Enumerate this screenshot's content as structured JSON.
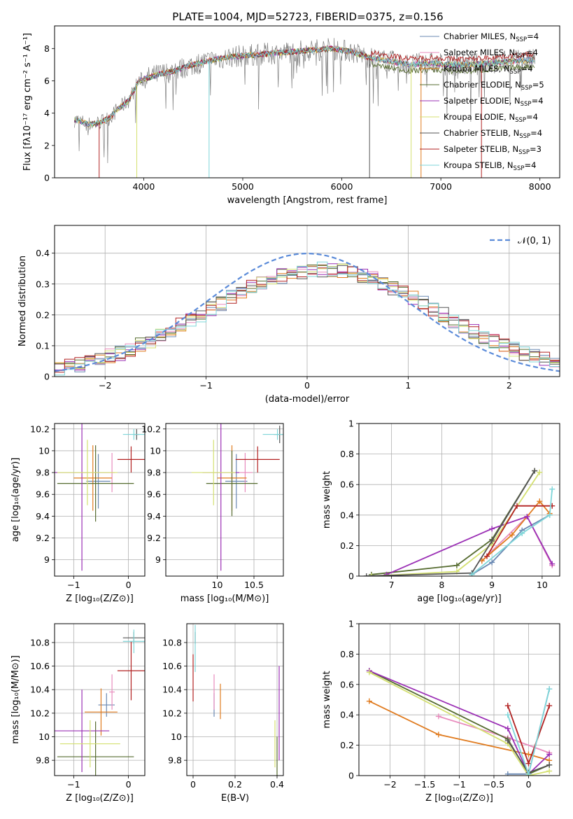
{
  "figure": {
    "title": "PLATE=1004, MJD=52723, FIBERID=0375, z=0.156",
    "colors": [
      "#6a89b3",
      "#e88bbd",
      "#e07b1f",
      "#556b2f",
      "#9b30b5",
      "#d4e070",
      "#555555",
      "#b22222",
      "#7fd6d9"
    ]
  },
  "chart_data": [
    {
      "type": "line",
      "name": "spectrum",
      "title": "PLATE=1004, MJD=52723, FIBERID=0375, z=0.156",
      "xlabel": "wavelength [Angstrom, rest frame]",
      "ylabel": "Flux [fλ10⁻¹⁷ erg cm⁻² s⁻¹ A⁻¹]",
      "xlim": [
        3100,
        8200
      ],
      "ylim": [
        0,
        9.4
      ],
      "xticks": [
        4000,
        5000,
        6000,
        7000,
        8000
      ],
      "yticks": [
        0,
        2,
        4,
        6,
        8
      ],
      "grid": false,
      "legend_position": "top-right",
      "continuum": {
        "x": [
          3300,
          3450,
          3550,
          3650,
          3750,
          3850,
          3950,
          4050,
          4150,
          4300,
          4500,
          4700,
          4900,
          5100,
          5300,
          5500,
          5700,
          5900,
          6100,
          6300,
          6500,
          6700,
          6900,
          7100,
          7300,
          7500,
          7700,
          7950
        ],
        "y": [
          3.6,
          3.3,
          3.4,
          3.7,
          4.3,
          4.8,
          6.0,
          6.2,
          6.4,
          6.6,
          7.0,
          7.3,
          7.5,
          7.6,
          7.7,
          7.8,
          7.9,
          8.0,
          7.8,
          7.4,
          7.2,
          7.0,
          7.1,
          7.0,
          7.0,
          7.1,
          7.2,
          7.3
        ]
      },
      "series": [
        {
          "name": "Chabrier MILES, N",
          "sub": "SSP",
          "suffix": "=4"
        },
        {
          "name": "Salpeter MILES, N",
          "sub": "SSP",
          "suffix": "=4"
        },
        {
          "name": "Kroupa MILES, N",
          "sub": "SSP",
          "suffix": "=4"
        },
        {
          "name": "Chabrier ELODIE, N",
          "sub": "SSP",
          "suffix": "=5"
        },
        {
          "name": "Salpeter ELODIE, N",
          "sub": "SSP",
          "suffix": "=4"
        },
        {
          "name": "Kroupa ELODIE, N",
          "sub": "SSP",
          "suffix": "=4"
        },
        {
          "name": "Chabrier STELIB, N",
          "sub": "SSP",
          "suffix": "=4"
        },
        {
          "name": "Salpeter STELIB, N",
          "sub": "SSP",
          "suffix": "=3"
        },
        {
          "name": "Kroupa STELIB, N",
          "sub": "SSP",
          "suffix": "=4"
        }
      ]
    },
    {
      "type": "line",
      "name": "residuals",
      "xlabel": "(data-model)/error",
      "ylabel": "Normed distribution",
      "xlim": [
        -2.5,
        2.5
      ],
      "ylim": [
        0,
        0.49
      ],
      "xticks": [
        -2,
        -1,
        0,
        1,
        2
      ],
      "yticks": [
        0.0,
        0.1,
        0.2,
        0.3,
        0.4
      ],
      "grid": true,
      "legend_position": "top-right",
      "gaussian_label": "𝒩(0, 1)"
    },
    {
      "type": "scatter",
      "name": "age-Z",
      "xlabel": "Z [log₁₀(Z/Z⊙)]",
      "ylabel": "age  [log₁₀(age/yr)]",
      "xlim": [
        -1.35,
        0.3
      ],
      "ylim": [
        8.85,
        10.25
      ],
      "xticks": [
        -1,
        0
      ],
      "yticks": [
        9.0,
        9.2,
        9.4,
        9.6,
        9.8,
        10.0,
        10.2
      ],
      "grid": true,
      "points": [
        {
          "x": -0.55,
          "y": 9.72,
          "xe": 0.22,
          "ye": 0.25,
          "c": 0
        },
        {
          "x": -0.3,
          "y": 9.8,
          "xe": 0.05,
          "ye": 0.18,
          "c": 1
        },
        {
          "x": -0.65,
          "y": 9.75,
          "xe": 0.35,
          "ye": 0.3,
          "c": 2
        },
        {
          "x": -0.6,
          "y": 9.7,
          "xe": 0.7,
          "ye": 0.35,
          "c": 3
        },
        {
          "x": -0.85,
          "y": 9.8,
          "xe": 0.5,
          "ye": 0.9,
          "c": 4
        },
        {
          "x": -0.75,
          "y": 9.8,
          "xe": 0.55,
          "ye": 0.3,
          "c": 5
        },
        {
          "x": 0.15,
          "y": 10.15,
          "xe": 0.05,
          "ye": 0.05,
          "c": 6
        },
        {
          "x": 0.05,
          "y": 9.92,
          "xe": 0.25,
          "ye": 0.12,
          "c": 7
        },
        {
          "x": 0.1,
          "y": 10.15,
          "xe": 0.2,
          "ye": 0.05,
          "c": 8
        }
      ]
    },
    {
      "type": "scatter",
      "name": "age-mass",
      "xlabel": "mass [log₁₀(M/M⊙)]",
      "ylabel": "",
      "xlim": [
        9.3,
        10.9
      ],
      "ylim": [
        8.85,
        10.25
      ],
      "xticks": [
        10.0,
        10.5
      ],
      "yticks": [
        9.0,
        9.2,
        9.4,
        9.6,
        9.8,
        10.0,
        10.2
      ],
      "grid": true,
      "points": [
        {
          "x": 10.26,
          "y": 9.72,
          "xe": 0.15,
          "ye": 0.25,
          "c": 0
        },
        {
          "x": 10.38,
          "y": 9.8,
          "xe": 0.1,
          "ye": 0.18,
          "c": 1
        },
        {
          "x": 10.2,
          "y": 9.75,
          "xe": 0.2,
          "ye": 0.3,
          "c": 2
        },
        {
          "x": 10.2,
          "y": 9.7,
          "xe": 0.35,
          "ye": 0.3,
          "c": 3
        },
        {
          "x": 10.05,
          "y": 9.8,
          "xe": 0.25,
          "ye": 0.9,
          "c": 4
        },
        {
          "x": 9.95,
          "y": 9.8,
          "xe": 0.3,
          "ye": 0.3,
          "c": 5
        },
        {
          "x": 10.85,
          "y": 10.15,
          "xe": 0.08,
          "ye": 0.08,
          "c": 6
        },
        {
          "x": 10.55,
          "y": 9.92,
          "xe": 0.3,
          "ye": 0.12,
          "c": 7
        },
        {
          "x": 10.82,
          "y": 10.15,
          "xe": 0.2,
          "ye": 0.05,
          "c": 8
        }
      ]
    },
    {
      "type": "line",
      "name": "weight-age",
      "xlabel": "age  [log₁₀(age/yr)]",
      "ylabel": "mass weight",
      "xlim": [
        6.35,
        10.35
      ],
      "ylim": [
        0,
        1.0
      ],
      "xticks": [
        7,
        8,
        9,
        10
      ],
      "yticks": [
        0.0,
        0.2,
        0.4,
        0.6,
        0.8,
        1.0
      ],
      "grid": true,
      "series": [
        {
          "c": 0,
          "x": [
            8.6,
            9.0,
            9.6,
            10.15
          ],
          "y": [
            0.01,
            0.09,
            0.3,
            0.4
          ]
        },
        {
          "c": 1,
          "x": [
            8.8,
            9.7,
            10.2
          ],
          "y": [
            0.1,
            0.39,
            0.07
          ]
        },
        {
          "c": 2,
          "x": [
            8.8,
            9.4,
            9.95,
            10.15
          ],
          "y": [
            0.1,
            0.27,
            0.49,
            0.41
          ]
        },
        {
          "c": 3,
          "x": [
            6.6,
            8.3,
            9.0,
            9.85
          ],
          "y": [
            0.01,
            0.07,
            0.24,
            0.69
          ]
        },
        {
          "c": 4,
          "x": [
            6.9,
            9.0,
            9.7,
            10.2
          ],
          "y": [
            0.01,
            0.31,
            0.39,
            0.08
          ]
        },
        {
          "c": 5,
          "x": [
            6.6,
            8.3,
            9.0,
            9.95
          ],
          "y": [
            0.0,
            0.03,
            0.21,
            0.68
          ]
        },
        {
          "c": 6,
          "x": [
            6.5,
            8.6,
            9.0,
            9.85
          ],
          "y": [
            0.0,
            0.02,
            0.23,
            0.69
          ]
        },
        {
          "c": 7,
          "x": [
            8.9,
            9.5,
            10.2
          ],
          "y": [
            0.13,
            0.46,
            0.46
          ]
        },
        {
          "c": 8,
          "x": [
            8.6,
            9.6,
            10.15,
            10.2
          ],
          "y": [
            0.01,
            0.28,
            0.4,
            0.57
          ]
        }
      ]
    },
    {
      "type": "scatter",
      "name": "mass-Z",
      "xlabel": "Z [log₁₀(Z/Z⊙)]",
      "ylabel": "mass [log₁₀(M/M⊙)]",
      "xlim": [
        -1.35,
        0.3
      ],
      "ylim": [
        9.67,
        10.96
      ],
      "xticks": [
        -1,
        0
      ],
      "yticks": [
        9.8,
        10.0,
        10.2,
        10.4,
        10.6,
        10.8
      ],
      "grid": true,
      "points": [
        {
          "x": -0.4,
          "y": 10.27,
          "xe": 0.15,
          "ye": 0.1,
          "c": 0
        },
        {
          "x": -0.3,
          "y": 10.38,
          "xe": 0.05,
          "ye": 0.15,
          "c": 1
        },
        {
          "x": -0.5,
          "y": 10.21,
          "xe": 0.3,
          "ye": 0.2,
          "c": 2
        },
        {
          "x": -0.6,
          "y": 9.83,
          "xe": 0.7,
          "ye": 0.3,
          "c": 3
        },
        {
          "x": -0.85,
          "y": 10.05,
          "xe": 0.5,
          "ye": 0.35,
          "c": 4
        },
        {
          "x": -0.7,
          "y": 9.94,
          "xe": 0.55,
          "ye": 0.2,
          "c": 5
        },
        {
          "x": 0.1,
          "y": 10.84,
          "xe": 0.2,
          "ye": 0.05,
          "c": 6
        },
        {
          "x": 0.05,
          "y": 10.56,
          "xe": 0.25,
          "ye": 0.25,
          "c": 7
        },
        {
          "x": 0.1,
          "y": 10.81,
          "xe": 0.2,
          "ye": 0.1,
          "c": 8
        }
      ]
    },
    {
      "type": "scatter",
      "name": "mass-ebv",
      "xlabel": "E(B-V)",
      "ylabel": "",
      "xlim": [
        -0.03,
        0.43
      ],
      "ylim": [
        9.67,
        10.96
      ],
      "xticks": [
        0.0,
        0.2,
        0.4
      ],
      "yticks": [
        9.8,
        10.0,
        10.2,
        10.4,
        10.6,
        10.8
      ],
      "grid": true,
      "points": [
        {
          "x": 0.1,
          "y": 10.27,
          "xe": 0,
          "ye": 0.1,
          "c": 0
        },
        {
          "x": 0.1,
          "y": 10.38,
          "xe": 0,
          "ye": 0.15,
          "c": 1
        },
        {
          "x": 0.13,
          "y": 10.3,
          "xe": 0,
          "ye": 0.15,
          "c": 2
        },
        {
          "x": 0.4,
          "y": 9.8,
          "xe": 0,
          "ye": 0.2,
          "c": 3
        },
        {
          "x": 0.41,
          "y": 10.2,
          "xe": 0,
          "ye": 0.4,
          "c": 4
        },
        {
          "x": 0.39,
          "y": 9.94,
          "xe": 0,
          "ye": 0.2,
          "c": 5
        },
        {
          "x": 0.01,
          "y": 10.84,
          "xe": 0,
          "ye": 0.05,
          "c": 6
        },
        {
          "x": 0.0,
          "y": 10.5,
          "xe": 0,
          "ye": 0.2,
          "c": 7
        },
        {
          "x": 0.01,
          "y": 10.75,
          "xe": 0,
          "ye": 0.2,
          "c": 8
        }
      ]
    },
    {
      "type": "line",
      "name": "weight-Z",
      "xlabel": "Z [log₁₀(Z/Z⊙)]",
      "ylabel": "mass weight",
      "xlim": [
        -2.45,
        0.45
      ],
      "ylim": [
        0,
        1.0
      ],
      "xticks": [
        -2.0,
        -1.5,
        -1.0,
        -0.5,
        0.0
      ],
      "yticks": [
        0.0,
        0.2,
        0.4,
        0.6,
        0.8,
        1.0
      ],
      "grid": true,
      "series": [
        {
          "c": 0,
          "x": [
            -0.3,
            0.0,
            0.3
          ],
          "y": [
            0.01,
            0.01,
            0.57
          ]
        },
        {
          "c": 1,
          "x": [
            -1.3,
            -0.3,
            0.3
          ],
          "y": [
            0.39,
            0.25,
            0.15
          ]
        },
        {
          "c": 2,
          "x": [
            -2.3,
            -1.3,
            0.0,
            0.3
          ],
          "y": [
            0.49,
            0.27,
            0.14,
            0.1
          ]
        },
        {
          "c": 3,
          "x": [
            -2.3,
            -0.3,
            0.0,
            0.3
          ],
          "y": [
            0.69,
            0.24,
            0.01,
            0.07
          ]
        },
        {
          "c": 4,
          "x": [
            -2.3,
            -0.3,
            0.0,
            0.3
          ],
          "y": [
            0.69,
            0.31,
            0.01,
            0.14
          ]
        },
        {
          "c": 5,
          "x": [
            -2.3,
            -0.3,
            0.0,
            0.3
          ],
          "y": [
            0.68,
            0.21,
            0.0,
            0.03
          ]
        },
        {
          "c": 6,
          "x": [
            -0.3,
            0.0,
            0.3
          ],
          "y": [
            0.23,
            0.02,
            0.07
          ]
        },
        {
          "c": 7,
          "x": [
            -0.3,
            0.0,
            0.3
          ],
          "y": [
            0.46,
            0.08,
            0.46
          ]
        },
        {
          "c": 8,
          "x": [
            -0.3,
            0.0,
            0.3
          ],
          "y": [
            0.4,
            0.01,
            0.57
          ]
        }
      ]
    }
  ]
}
